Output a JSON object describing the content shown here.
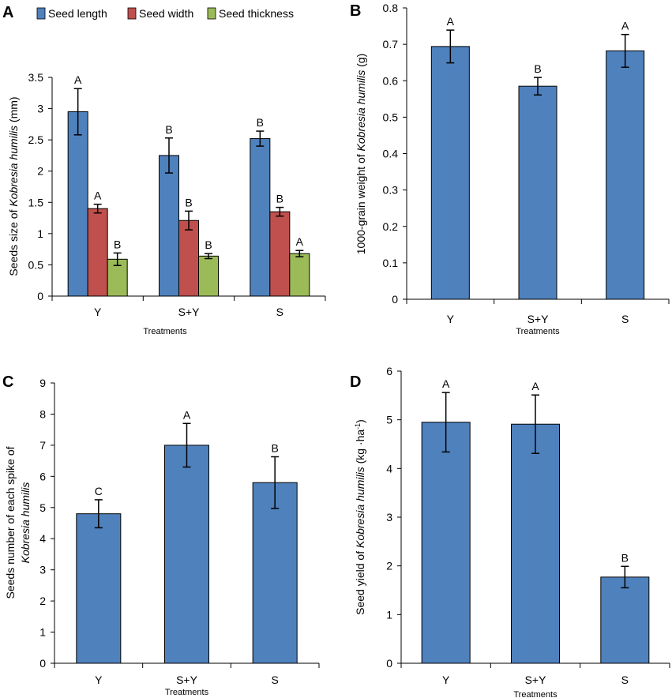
{
  "colors": {
    "blue": "#4f81bd",
    "red": "#c0504d",
    "green": "#9bbb59",
    "axis": "#000000"
  },
  "chart_data": [
    {
      "panel": "A",
      "type": "bar",
      "categories": [
        "Y",
        "S+Y",
        "S"
      ],
      "xlabel": "Treatments",
      "ylabel_parts": [
        {
          "text": "Seeds size of ",
          "italic": false
        },
        {
          "text": "Kobresia humilis",
          "italic": true
        },
        {
          "text": " (mm)",
          "italic": false
        }
      ],
      "ylim": [
        0,
        3.5
      ],
      "ytick_labels": [
        "0",
        "0.5",
        "1",
        "1.5",
        "2",
        "2.5",
        "3",
        "3.5"
      ],
      "series": [
        {
          "name": "Seed length",
          "color": "#4f81bd",
          "values": [
            2.95,
            2.25,
            2.52
          ],
          "errors": [
            0.37,
            0.28,
            0.12
          ],
          "letters": [
            "A",
            "B",
            "B"
          ]
        },
        {
          "name": "Seed width",
          "color": "#c0504d",
          "values": [
            1.4,
            1.21,
            1.35
          ],
          "errors": [
            0.07,
            0.15,
            0.07
          ],
          "letters": [
            "A",
            "B",
            "B"
          ]
        },
        {
          "name": "Seed thickness",
          "color": "#9bbb59",
          "values": [
            0.59,
            0.64,
            0.68
          ],
          "errors": [
            0.1,
            0.04,
            0.05
          ],
          "letters": [
            "B",
            "B",
            "A"
          ]
        }
      ]
    },
    {
      "panel": "B",
      "type": "bar",
      "categories": [
        "Y",
        "S+Y",
        "S"
      ],
      "xlabel": "Treatments",
      "ylabel_parts": [
        {
          "text": "1000-grain weight of ",
          "italic": false
        },
        {
          "text": "Kobresia humilis",
          "italic": true
        },
        {
          "text": " (g)",
          "italic": false
        }
      ],
      "ylim": [
        0,
        0.8
      ],
      "ytick_labels": [
        "0",
        "0.1",
        "0.2",
        "0.3",
        "0.4",
        "0.5",
        "0.6",
        "0.7",
        "0.8"
      ],
      "series": [
        {
          "name": "1000-grain weight",
          "color": "#4f81bd",
          "values": [
            0.694,
            0.585,
            0.682
          ],
          "errors": [
            0.045,
            0.024,
            0.045
          ],
          "letters": [
            "A",
            "B",
            "A"
          ]
        }
      ]
    },
    {
      "panel": "C",
      "type": "bar",
      "categories": [
        "Y",
        "S+Y",
        "S"
      ],
      "xlabel": "Treatments",
      "ylabel_line1": "Seeds number of each spike of",
      "ylabel_line2": "Kobresia humilis",
      "ylim": [
        0,
        9
      ],
      "ytick_labels": [
        "0",
        "1",
        "2",
        "3",
        "4",
        "5",
        "6",
        "7",
        "8",
        "9"
      ],
      "series": [
        {
          "name": "Seeds number",
          "color": "#4f81bd",
          "values": [
            4.8,
            7.0,
            5.8
          ],
          "errors": [
            0.45,
            0.7,
            0.83
          ],
          "letters": [
            "C",
            "A",
            "B"
          ]
        }
      ]
    },
    {
      "panel": "D",
      "type": "bar",
      "categories": [
        "Y",
        "S+Y",
        "S"
      ],
      "xlabel": "Treatments",
      "ylabel_parts": [
        {
          "text": "Seed yield of ",
          "italic": false
        },
        {
          "text": "Kobresia humilis",
          "italic": true
        },
        {
          "text": " (kg ·ha",
          "italic": false
        },
        {
          "text": "-1",
          "italic": false,
          "sup": true
        },
        {
          "text": ")",
          "italic": false
        }
      ],
      "ylim": [
        0,
        6
      ],
      "ytick_labels": [
        "0",
        "1",
        "2",
        "3",
        "4",
        "5",
        "6"
      ],
      "series": [
        {
          "name": "Seed yield",
          "color": "#4f81bd",
          "values": [
            4.95,
            4.91,
            1.77
          ],
          "errors": [
            0.61,
            0.6,
            0.22
          ],
          "letters": [
            "A",
            "A",
            "B"
          ]
        }
      ]
    }
  ]
}
